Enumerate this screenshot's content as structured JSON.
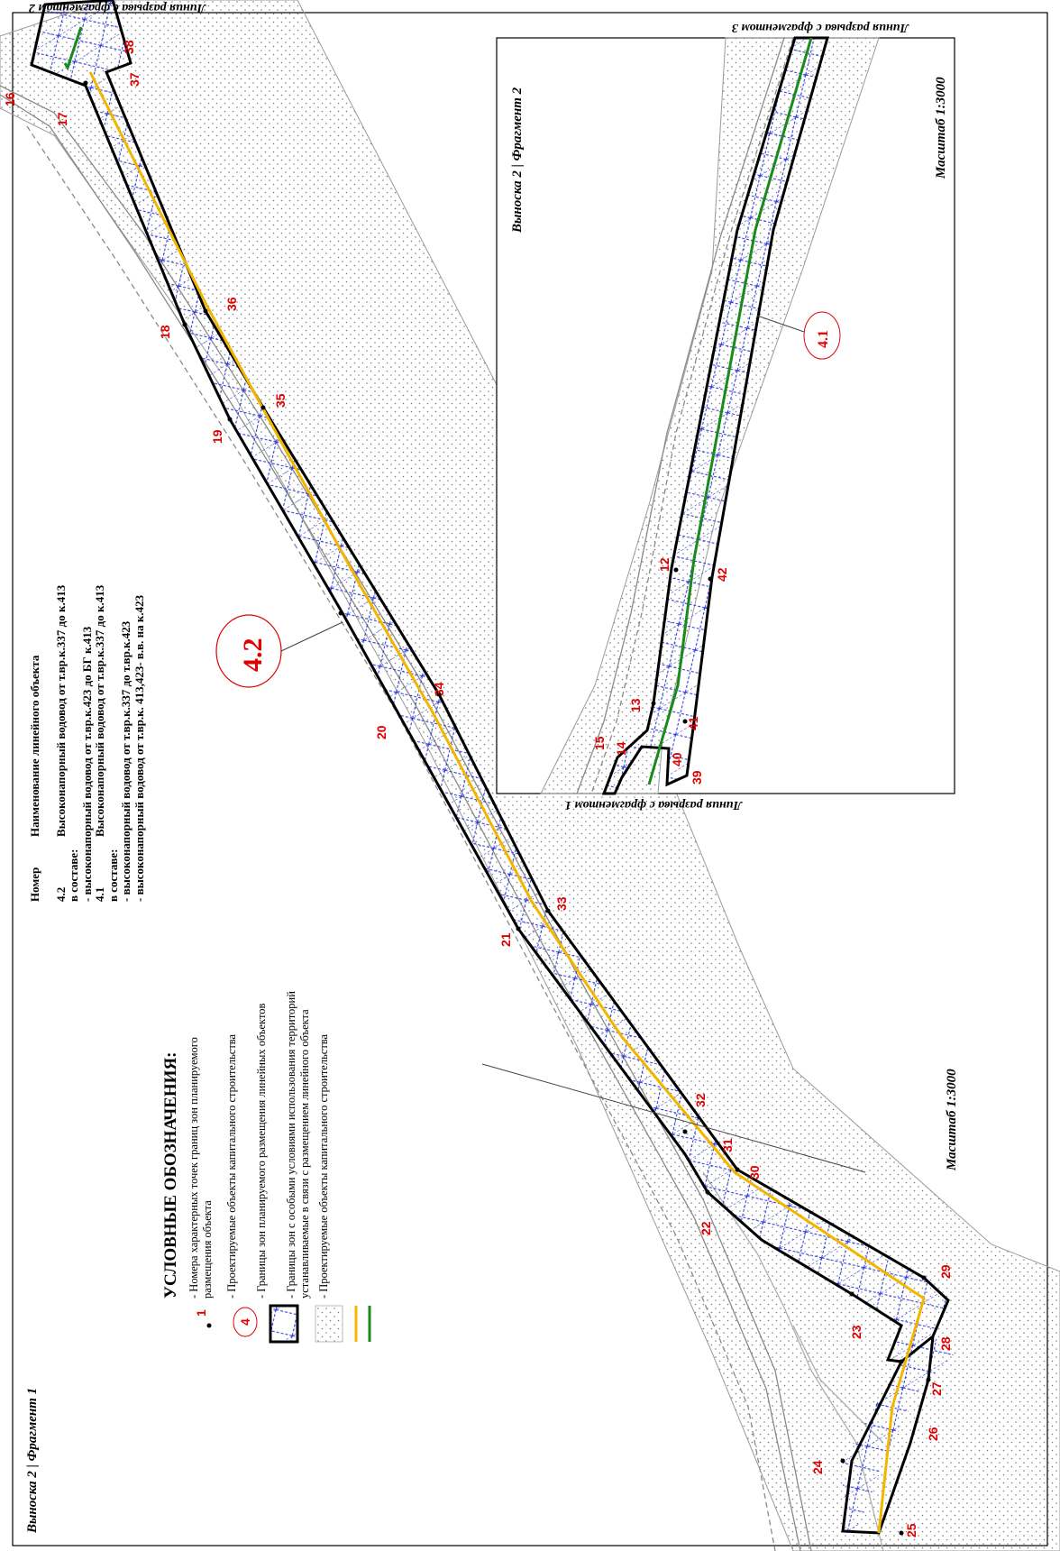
{
  "sheet": {
    "callout_fragment1": "Выноска 2 | Фрагмент 1",
    "callout_fragment2": "Выноска 2 | Фрагмент 2",
    "scale_main": "Масштаб 1:3000",
    "scale_inset": "Масштаб 1:3000",
    "break_line_to_fragment2": "Линия разрыва с фрагментом 2",
    "break_line_to_fragment3": "Линия разрыва с фрагментом 3",
    "break_line_to_fragment1": "Линия разрыва с фрагментом 1"
  },
  "object_labels": {
    "main": "4.2",
    "inset": "4.1"
  },
  "legend": {
    "title": "УСЛОВНЫЕ ОБОЗНАЧЕНИЯ:",
    "point_symbol_number": "1",
    "object_symbol_number": "4",
    "items": [
      {
        "text_lines": [
          "- Номера характерных точек границ зон планируемого",
          "размещения объекта"
        ]
      },
      {
        "text_lines": [
          "- Проектируемые объекты капитального строительства"
        ]
      },
      {
        "text_lines": [
          "- Границы зон планируемого размещения линейных объектов"
        ]
      },
      {
        "text_lines": [
          "- Границы зон с особыми условиями использования территорий",
          "устанавливаемые в связи с размещением линейного объекта"
        ]
      },
      {
        "text_lines": [
          "- Проектируемые объекты капитального строительства"
        ]
      }
    ],
    "colors": {
      "water_line_yellow": "#f2b600",
      "water_line_green": "#1a8a1a",
      "zone_hatch": "#2030e0",
      "zone_border": "#000000",
      "point_number": "#e00000"
    }
  },
  "object_table": {
    "header_number": "Номер",
    "header_name": "Наименование линейного объекта",
    "rows": [
      {
        "number": "4.2",
        "name": "Высоконапорный водовод от т.вр.к.337 до к.413"
      },
      {
        "number": "",
        "name": "в составе:"
      },
      {
        "number": "",
        "name": "- высоконапорный водовод от т.вр.к.423 до БГ к.413"
      },
      {
        "number": "4.1",
        "name": "Высоконапорный водовод от т.вр.к.337 до к.413"
      },
      {
        "number": "",
        "name": "в составе:"
      },
      {
        "number": "",
        "name": "- высоконапорный водовод от т.вр.к.337 до т.вр.к.423"
      },
      {
        "number": "",
        "name": "- высоконапорный водовод от т.вр.к. 413,423- в.в. на к.423"
      }
    ]
  },
  "boundary_points_main": [
    "16",
    "17",
    "18",
    "19",
    "20",
    "21",
    "22",
    "23",
    "24",
    "25",
    "26",
    "27",
    "28",
    "29",
    "30",
    "31",
    "32",
    "33",
    "34",
    "35",
    "36",
    "37",
    "38"
  ],
  "boundary_points_inset": [
    "12",
    "13",
    "14",
    "15",
    "39",
    "40",
    "41",
    "42"
  ]
}
